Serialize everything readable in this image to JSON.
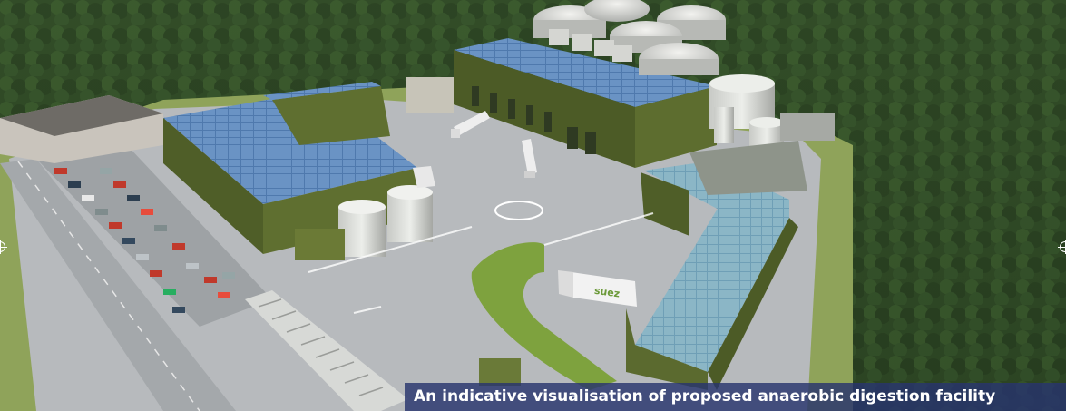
{
  "image": {
    "caption": "An indicative visualisation of proposed anaerobic digestion facility",
    "truck_logo_text": "suez",
    "colors": {
      "forest": "#2f4a26",
      "forest_dark": "#1f3319",
      "grass": "#6f8f3a",
      "asphalt": "#b9bcbf",
      "building_wall": "#5b6a2f",
      "solar_panel": "#5d86b8",
      "tank": "#d9dbd8",
      "caption_bg": "#28346e"
    }
  }
}
